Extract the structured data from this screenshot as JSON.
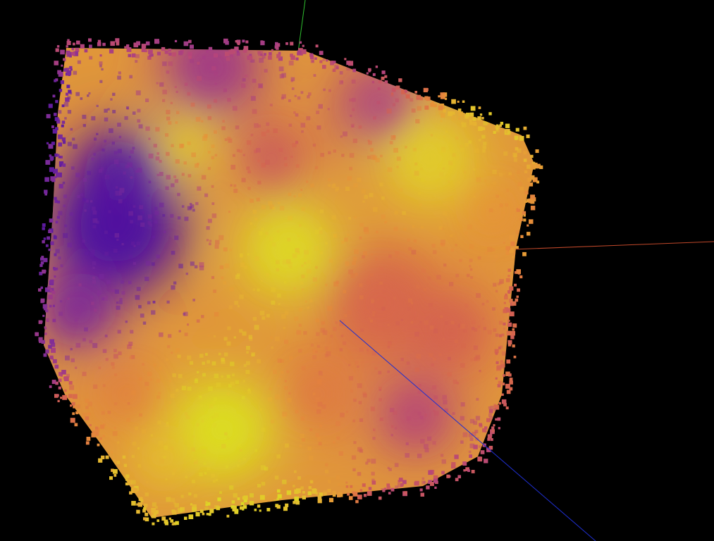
{
  "scene": {
    "type": "3d-point-cloud",
    "shape": "cube",
    "background_color": "#000000",
    "point_marker": "square",
    "colormap": "plasma",
    "colormap_stops": [
      "#4a0fa0",
      "#7a2a9a",
      "#b5457a",
      "#d5634f",
      "#e68a3a",
      "#e6b830",
      "#dcdc22"
    ]
  },
  "axes": {
    "x": {
      "color": "#c0482a",
      "icon": "x-axis-line"
    },
    "y": {
      "color": "#2fbf2f",
      "icon": "y-axis-line"
    },
    "z": {
      "color": "#1f2fd0",
      "icon": "z-axis-line"
    }
  }
}
